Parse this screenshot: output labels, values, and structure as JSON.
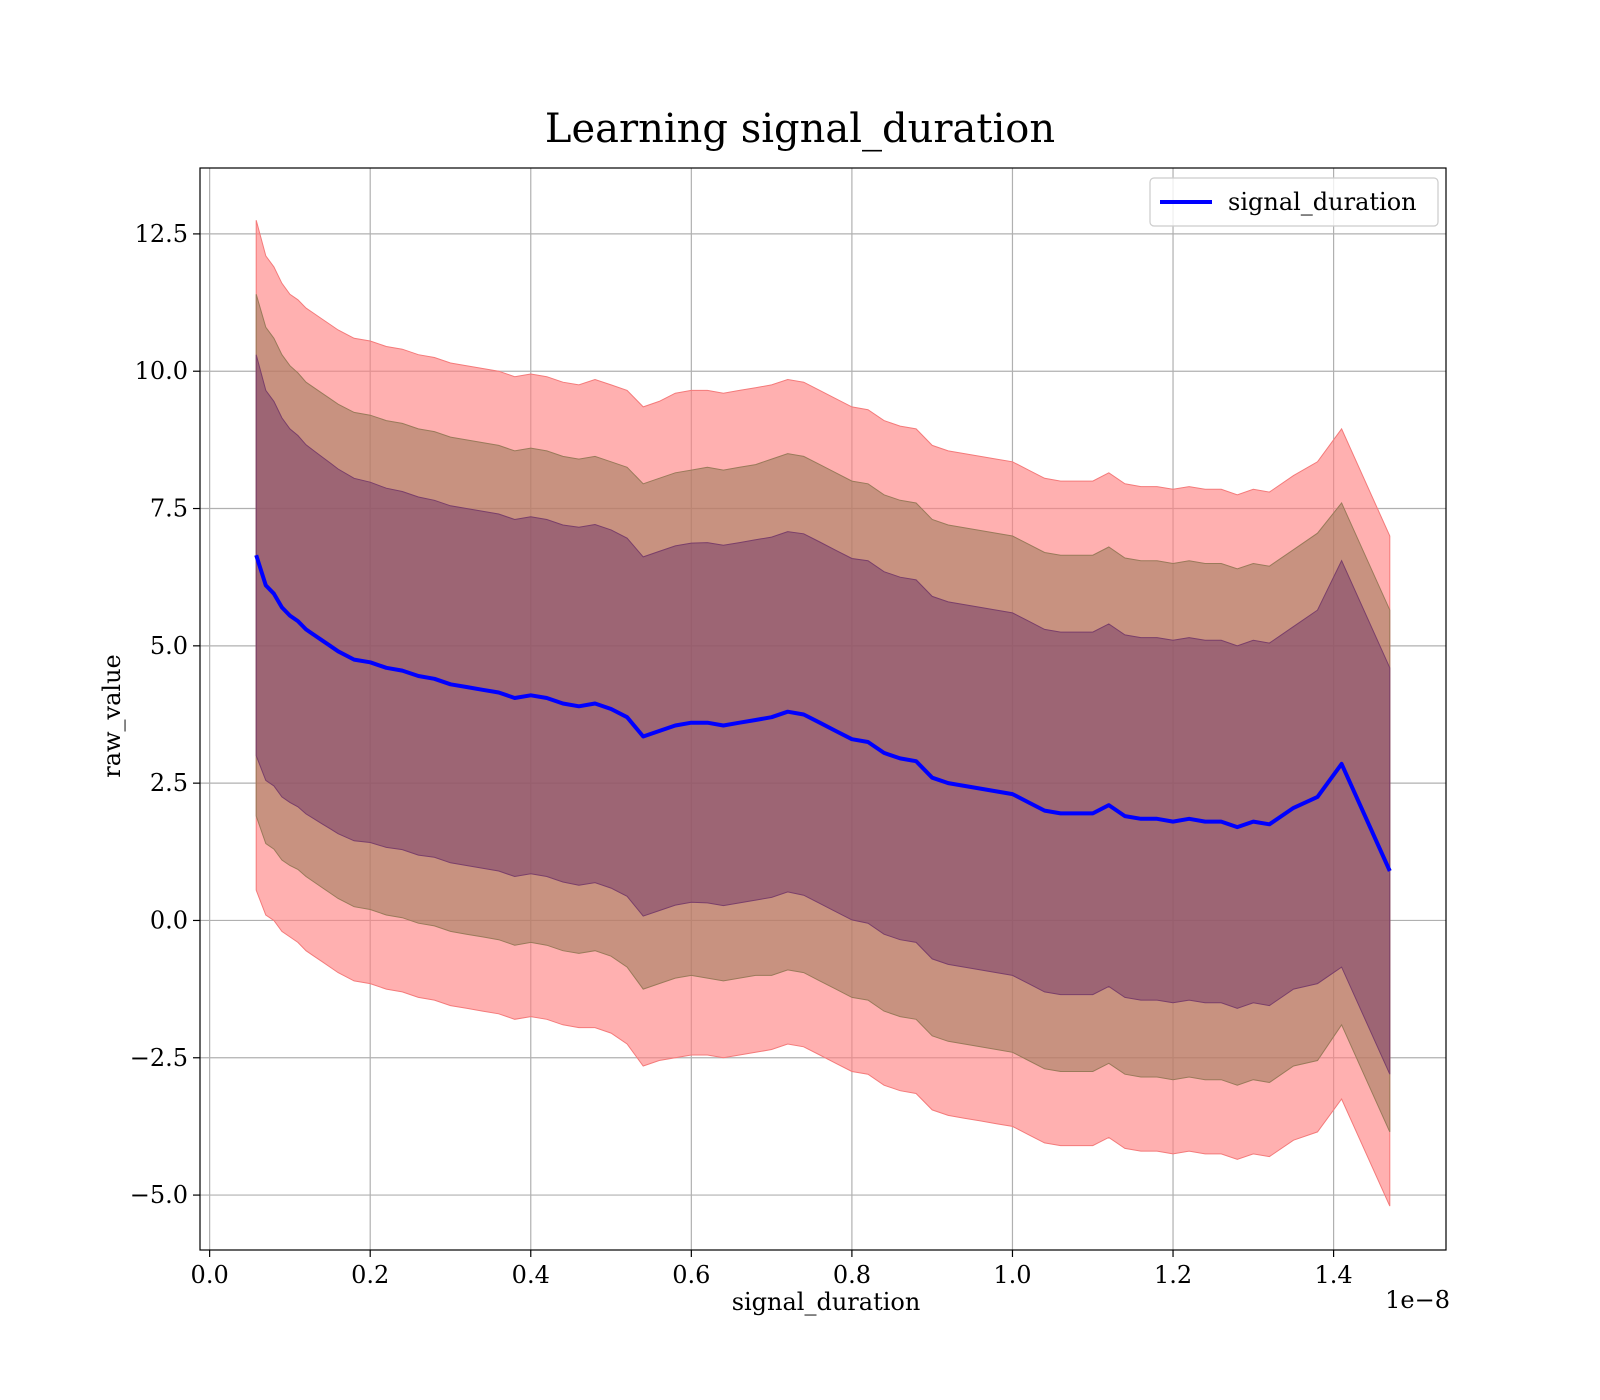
{
  "chart_data": {
    "type": "line",
    "title": "Learning signal_duration",
    "xlabel": "signal_duration",
    "ylabel": "raw_value",
    "x_offset_label": "1e−8",
    "xlim": [
      -0.012,
      1.54
    ],
    "ylim": [
      -6.0,
      13.7
    ],
    "x_ticks": [
      0.0,
      0.2,
      0.4,
      0.6,
      0.8,
      1.0,
      1.2,
      1.4
    ],
    "x_tick_labels": [
      "0.0",
      "0.2",
      "0.4",
      "0.6",
      "0.8",
      "1.0",
      "1.2",
      "1.4"
    ],
    "y_ticks": [
      -5.0,
      -2.5,
      0.0,
      2.5,
      5.0,
      7.5,
      10.0,
      12.5
    ],
    "y_tick_labels": [
      "−5.0",
      "−2.5",
      "0.0",
      "2.5",
      "5.0",
      "7.5",
      "10.0",
      "12.5"
    ],
    "grid": true,
    "legend": {
      "placement": "top-right",
      "entries": [
        "signal_duration"
      ]
    },
    "colors": {
      "line": "#0000ff",
      "band_outer": "#ff7f7f",
      "band_outer_edge": "#f47a7a",
      "band_middle": "#9a7a5a",
      "band_inner": "#7a3f6a"
    },
    "series": [
      {
        "name": "signal_duration",
        "x": [
          0.058,
          0.07,
          0.08,
          0.09,
          0.1,
          0.11,
          0.12,
          0.13,
          0.14,
          0.15,
          0.16,
          0.18,
          0.2,
          0.22,
          0.24,
          0.26,
          0.28,
          0.3,
          0.32,
          0.34,
          0.36,
          0.38,
          0.4,
          0.42,
          0.44,
          0.46,
          0.48,
          0.5,
          0.52,
          0.54,
          0.56,
          0.58,
          0.6,
          0.62,
          0.64,
          0.66,
          0.68,
          0.7,
          0.72,
          0.74,
          0.76,
          0.78,
          0.8,
          0.82,
          0.84,
          0.86,
          0.88,
          0.9,
          0.92,
          0.94,
          0.96,
          0.98,
          1.0,
          1.02,
          1.04,
          1.06,
          1.08,
          1.1,
          1.12,
          1.14,
          1.16,
          1.18,
          1.2,
          1.22,
          1.24,
          1.26,
          1.28,
          1.3,
          1.32,
          1.35,
          1.38,
          1.41,
          1.47
        ],
        "y": [
          6.65,
          6.1,
          5.95,
          5.7,
          5.55,
          5.45,
          5.3,
          5.2,
          5.1,
          5.0,
          4.9,
          4.75,
          4.7,
          4.6,
          4.55,
          4.45,
          4.4,
          4.3,
          4.25,
          4.2,
          4.15,
          4.05,
          4.1,
          4.05,
          3.95,
          3.9,
          3.95,
          3.85,
          3.7,
          3.35,
          3.45,
          3.55,
          3.6,
          3.6,
          3.55,
          3.6,
          3.65,
          3.7,
          3.8,
          3.75,
          3.6,
          3.45,
          3.3,
          3.25,
          3.05,
          2.95,
          2.9,
          2.6,
          2.5,
          2.45,
          2.4,
          2.35,
          2.3,
          2.15,
          2.0,
          1.95,
          1.95,
          1.95,
          2.1,
          1.9,
          1.85,
          1.85,
          1.8,
          1.85,
          1.8,
          1.8,
          1.7,
          1.8,
          1.75,
          2.05,
          2.25,
          2.85,
          0.9
        ],
        "band_inner_half_width": [
          3.65,
          3.55,
          3.5,
          3.45,
          3.4,
          3.38,
          3.36,
          3.35,
          3.34,
          3.33,
          3.32,
          3.3,
          3.28,
          3.27,
          3.26,
          3.26,
          3.25,
          3.25,
          3.25,
          3.25,
          3.25,
          3.25,
          3.25,
          3.25,
          3.25,
          3.26,
          3.26,
          3.26,
          3.26,
          3.27,
          3.27,
          3.27,
          3.27,
          3.28,
          3.28,
          3.28,
          3.28,
          3.28,
          3.28,
          3.29,
          3.29,
          3.29,
          3.29,
          3.3,
          3.3,
          3.3,
          3.3,
          3.3,
          3.3,
          3.3,
          3.3,
          3.3,
          3.3,
          3.3,
          3.3,
          3.3,
          3.3,
          3.3,
          3.3,
          3.3,
          3.3,
          3.3,
          3.3,
          3.3,
          3.3,
          3.3,
          3.3,
          3.3,
          3.3,
          3.3,
          3.4,
          3.7,
          3.7
        ],
        "band_middle_half_width": [
          4.75,
          4.7,
          4.65,
          4.6,
          4.55,
          4.52,
          4.5,
          4.5,
          4.5,
          4.5,
          4.5,
          4.5,
          4.5,
          4.5,
          4.5,
          4.5,
          4.5,
          4.5,
          4.5,
          4.5,
          4.5,
          4.5,
          4.5,
          4.5,
          4.5,
          4.5,
          4.5,
          4.5,
          4.55,
          4.6,
          4.6,
          4.6,
          4.6,
          4.65,
          4.65,
          4.65,
          4.65,
          4.7,
          4.7,
          4.7,
          4.7,
          4.7,
          4.7,
          4.7,
          4.7,
          4.7,
          4.7,
          4.7,
          4.7,
          4.7,
          4.7,
          4.7,
          4.7,
          4.7,
          4.7,
          4.7,
          4.7,
          4.7,
          4.7,
          4.7,
          4.7,
          4.7,
          4.7,
          4.7,
          4.7,
          4.7,
          4.7,
          4.7,
          4.7,
          4.7,
          4.8,
          4.75,
          4.75
        ],
        "band_outer_half_width": [
          6.1,
          6.0,
          5.95,
          5.9,
          5.85,
          5.85,
          5.85,
          5.85,
          5.85,
          5.85,
          5.85,
          5.85,
          5.85,
          5.85,
          5.85,
          5.85,
          5.85,
          5.85,
          5.85,
          5.85,
          5.85,
          5.85,
          5.85,
          5.85,
          5.85,
          5.85,
          5.9,
          5.9,
          5.95,
          6.0,
          6.0,
          6.05,
          6.05,
          6.05,
          6.05,
          6.05,
          6.05,
          6.05,
          6.05,
          6.05,
          6.05,
          6.05,
          6.05,
          6.05,
          6.05,
          6.05,
          6.05,
          6.05,
          6.05,
          6.05,
          6.05,
          6.05,
          6.05,
          6.05,
          6.05,
          6.05,
          6.05,
          6.05,
          6.05,
          6.05,
          6.05,
          6.05,
          6.05,
          6.05,
          6.05,
          6.05,
          6.05,
          6.05,
          6.05,
          6.05,
          6.1,
          6.1,
          6.1
        ]
      }
    ]
  }
}
